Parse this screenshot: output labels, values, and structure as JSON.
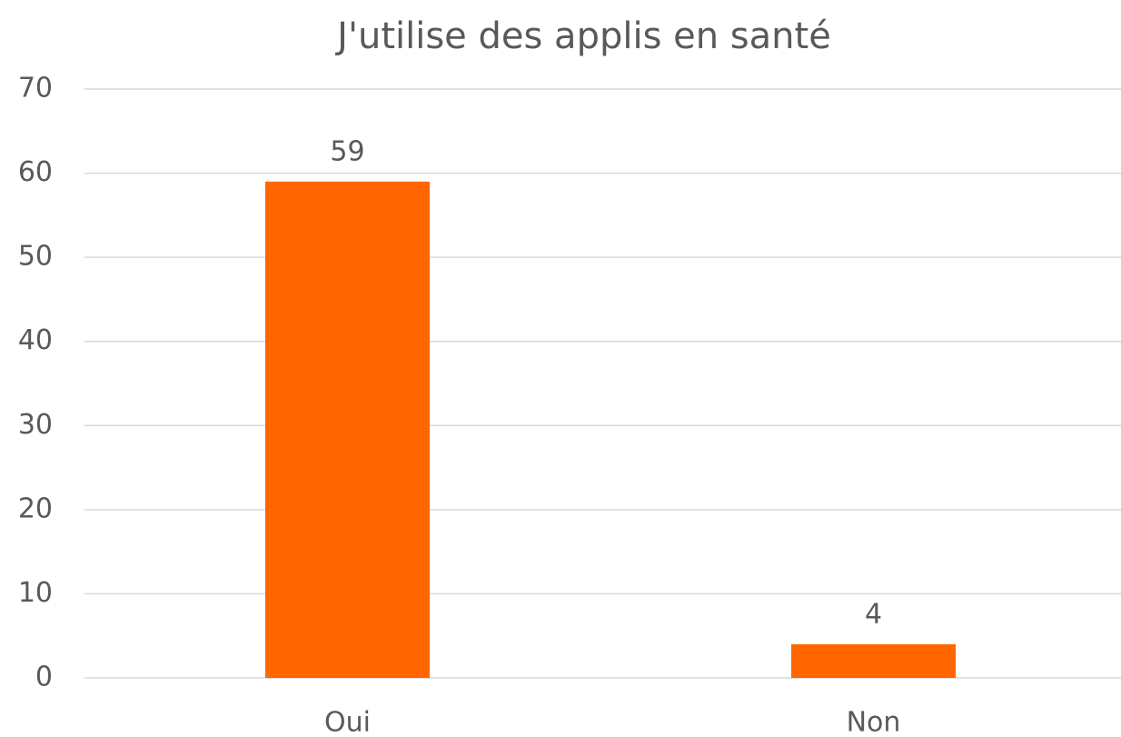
{
  "chart_data": {
    "type": "bar",
    "title": "J'utilise des applis en santé",
    "categories": [
      "Oui",
      "Non"
    ],
    "values": [
      59,
      4
    ],
    "color": "#ff6600",
    "ylim": [
      0,
      70
    ],
    "yticks": [
      0,
      10,
      20,
      30,
      40,
      50,
      60,
      70
    ],
    "grid": true
  }
}
